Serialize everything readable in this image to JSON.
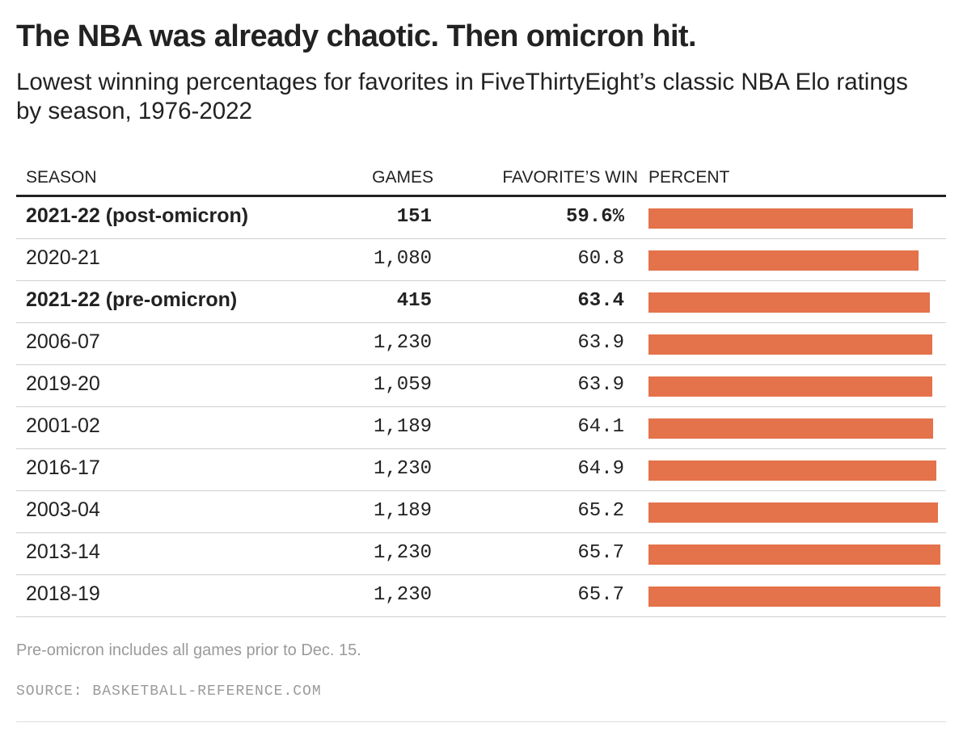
{
  "title": "The NBA was already chaotic. Then omicron hit.",
  "subtitle": "Lowest winning percentages for favorites in FiveThirtyEight’s classic NBA Elo ratings by season, 1976-2022",
  "columns": {
    "season": "SEASON",
    "games": "GAMES",
    "favorite_win_pct": "FAVORITE’S WIN",
    "percent_bar": "PERCENT"
  },
  "note": "Pre-omicron includes all games prior to Dec. 15.",
  "source": "SOURCE: BASKETBALL-REFERENCE.COM",
  "colors": {
    "bar": "#e4724a",
    "text": "#222222",
    "muted": "#9a9a9a"
  },
  "chart_data": {
    "type": "table",
    "title": "The NBA was already chaotic. Then omicron hit.",
    "subtitle": "Lowest winning percentages for favorites in FiveThirtyEight’s classic NBA Elo ratings by season, 1976-2022",
    "bar_domain": [
      0,
      67
    ],
    "rows": [
      {
        "season": "2021-22 (post-omicron)",
        "games": "151",
        "pct": 59.6,
        "pct_label": "59.6%",
        "highlight": true
      },
      {
        "season": "2020-21",
        "games": "1,080",
        "pct": 60.8,
        "pct_label": "60.8",
        "highlight": false
      },
      {
        "season": "2021-22 (pre-omicron)",
        "games": "415",
        "pct": 63.4,
        "pct_label": "63.4",
        "highlight": true
      },
      {
        "season": "2006-07",
        "games": "1,230",
        "pct": 63.9,
        "pct_label": "63.9",
        "highlight": false
      },
      {
        "season": "2019-20",
        "games": "1,059",
        "pct": 63.9,
        "pct_label": "63.9",
        "highlight": false
      },
      {
        "season": "2001-02",
        "games": "1,189",
        "pct": 64.1,
        "pct_label": "64.1",
        "highlight": false
      },
      {
        "season": "2016-17",
        "games": "1,230",
        "pct": 64.9,
        "pct_label": "64.9",
        "highlight": false
      },
      {
        "season": "2003-04",
        "games": "1,189",
        "pct": 65.2,
        "pct_label": "65.2",
        "highlight": false
      },
      {
        "season": "2013-14",
        "games": "1,230",
        "pct": 65.7,
        "pct_label": "65.7",
        "highlight": false
      },
      {
        "season": "2018-19",
        "games": "1,230",
        "pct": 65.7,
        "pct_label": "65.7",
        "highlight": false
      }
    ]
  }
}
